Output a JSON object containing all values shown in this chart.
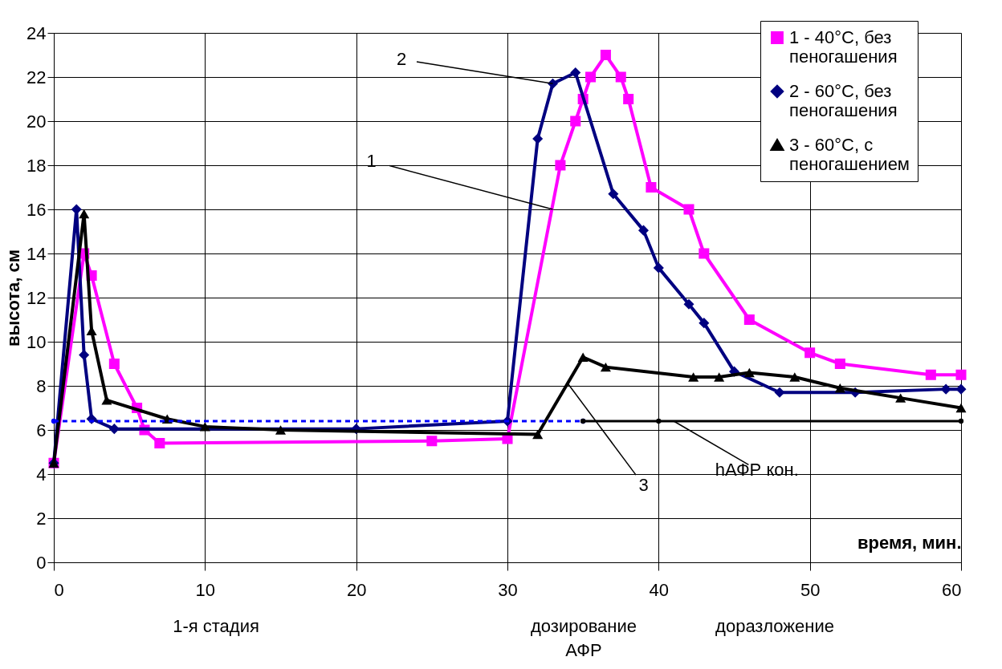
{
  "chart_data": {
    "type": "line",
    "xlabel": "время, мин.",
    "ylabel": "высота, см",
    "xlim": [
      0,
      60
    ],
    "xticks": [
      0,
      10,
      20,
      30,
      40,
      50,
      60
    ],
    "ylim": [
      0,
      24
    ],
    "yticks": [
      0,
      2,
      4,
      6,
      8,
      10,
      12,
      14,
      16,
      18,
      20,
      22,
      24
    ],
    "grid": true,
    "legend": "top right",
    "series": [
      {
        "name": "1 - 40°C, без\nпеногашения",
        "color": "#ff00ff",
        "marker": "square",
        "x": [
          0,
          2,
          2.5,
          4,
          5.5,
          6,
          7,
          25,
          30,
          33.5,
          34.5,
          35,
          35.5,
          36.5,
          37.5,
          38,
          39.5,
          42,
          43,
          46,
          50,
          52,
          58,
          60
        ],
        "values": [
          4.5,
          14,
          13,
          9,
          7,
          6,
          5.4,
          5.5,
          5.6,
          18,
          20,
          21,
          22,
          23,
          22,
          21,
          17,
          16,
          14,
          11,
          9.5,
          9,
          8.5,
          8.5
        ]
      },
      {
        "name": "2 -  60°C, без\nпеногашения",
        "color": "#000080",
        "marker": "diamond",
        "x": [
          0,
          1.5,
          2,
          2.5,
          4,
          20,
          30,
          32,
          33,
          34.5,
          37,
          39,
          40,
          42,
          43,
          45,
          48,
          53,
          59,
          60
        ],
        "values": [
          4.5,
          16,
          9.4,
          6.5,
          6.05,
          6.05,
          6.4,
          19.2,
          21.7,
          22.2,
          16.7,
          15.05,
          13.35,
          11.7,
          10.85,
          8.65,
          7.7,
          7.7,
          7.85,
          7.85
        ]
      },
      {
        "name": "3 - 60°C, с\nпеногашением",
        "color": "#000000",
        "marker": "triangle",
        "x": [
          0,
          2,
          2.5,
          3.5,
          7.5,
          10,
          15,
          32,
          35,
          36.5,
          42.3,
          44,
          46,
          49,
          52,
          56,
          60
        ],
        "values": [
          4.5,
          15.8,
          10.5,
          7.35,
          6.5,
          6.15,
          6,
          5.8,
          9.3,
          8.85,
          8.4,
          8.4,
          8.6,
          8.4,
          7.9,
          7.45,
          7.0
        ]
      },
      {
        "color": "#0000ff",
        "marker": "circle",
        "line_style": "dashed",
        "x": [
          0,
          35
        ],
        "values": [
          6.4,
          6.4
        ]
      },
      {
        "color": "#000000",
        "marker": "circle",
        "line_style": "solid",
        "x": [
          35,
          40,
          60
        ],
        "values": [
          6.4,
          6.4,
          6.4
        ]
      }
    ],
    "annotations": [
      {
        "text": "1",
        "x": 33,
        "y": 16
      },
      {
        "text": "2",
        "x": 33,
        "y": 21.7
      },
      {
        "text": "3",
        "x": 34,
        "y": 8.1
      },
      {
        "text": "hАФР кон.",
        "x": 41,
        "y": 6.4
      },
      "1-я стадия",
      "дозирование\nАФР",
      "доразложение"
    ]
  }
}
